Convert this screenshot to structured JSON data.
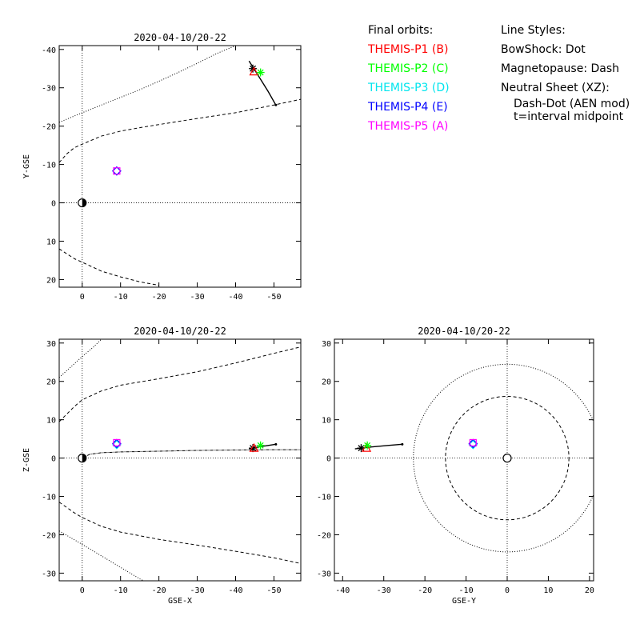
{
  "legend_orbits": {
    "title": "Final orbits:",
    "items": [
      {
        "label": "THEMIS-P1 (B)",
        "color": "#ff0000"
      },
      {
        "label": "THEMIS-P2 (C)",
        "color": "#00ff00"
      },
      {
        "label": "THEMIS-P3 (D)",
        "color": "#00e5ee"
      },
      {
        "label": "THEMIS-P4 (E)",
        "color": "#0000ff"
      },
      {
        "label": "THEMIS-P5 (A)",
        "color": "#ff00ff"
      }
    ]
  },
  "legend_styles": {
    "title": "Line Styles:",
    "bowshock": "BowShock: Dot",
    "magnetopause": "Magnetopause: Dash",
    "neutral_sheet": "Neutral Sheet (XZ):",
    "neutral_sheet_detail1": "Dash-Dot (AEN mod)",
    "neutral_sheet_detail2": "t=interval midpoint"
  },
  "chart_data": [
    {
      "type": "scatter",
      "title": "2020-04-10/20-22",
      "xlabel": "",
      "ylabel": "Y-GSE",
      "xlim": [
        6,
        -57
      ],
      "ylim": [
        22,
        -41
      ],
      "xticks": [
        0,
        -10,
        -20,
        -30,
        -40,
        -50
      ],
      "xtick_labels": [
        "0",
        "-10",
        "-20",
        "-30",
        "-40",
        "-50"
      ],
      "yticks": [
        20,
        10,
        0,
        -10,
        -20,
        -30,
        -40
      ],
      "ytick_labels": [
        "20",
        "10",
        "0",
        "-10",
        "-20",
        "-30",
        "-40"
      ],
      "probes": [
        {
          "name": "THEMIS-P1 (B)",
          "x": -44.8,
          "y": -34.2,
          "marker": "triangle",
          "color": "#ff0000"
        },
        {
          "name": "THEMIS-P2 (C)",
          "x": -46.5,
          "y": -34.0,
          "marker": "asterisk",
          "color": "#00ff00"
        },
        {
          "name": "THEMIS-P3 (D)",
          "x": -9.0,
          "y": -8.3,
          "marker": "diamond",
          "color": "#00e5ee"
        },
        {
          "name": "THEMIS-P4 (E)",
          "x": -9.0,
          "y": -8.3,
          "marker": "diamond",
          "color": "#0000ff"
        },
        {
          "name": "THEMIS-P5 (A)",
          "x": -9.0,
          "y": -8.3,
          "marker": "square",
          "color": "#ff00ff"
        }
      ],
      "orbit_track": [
        [
          -43.5,
          -37.0
        ],
        [
          -46.0,
          -33.0
        ],
        [
          -48.5,
          -29.0
        ],
        [
          -50.5,
          -25.5
        ]
      ],
      "track_end_marker": {
        "x": -44.5,
        "y": -35.0
      },
      "bowshock": [
        [
          6,
          -21.0
        ],
        [
          0,
          -23.5
        ],
        [
          -5,
          -25.5
        ],
        [
          -10,
          -27.5
        ],
        [
          -15,
          -29.5
        ],
        [
          -20,
          -31.7
        ],
        [
          -25,
          -34.0
        ],
        [
          -30,
          -36.4
        ],
        [
          -35,
          -38.9
        ],
        [
          -40,
          -41.0
        ]
      ],
      "magnetopause_top": [
        [
          6,
          -10.5
        ],
        [
          4,
          -12.8
        ],
        [
          2,
          -14.4
        ],
        [
          0,
          -15.3
        ],
        [
          -5,
          -17.4
        ],
        [
          -10,
          -18.7
        ],
        [
          -15,
          -19.6
        ],
        [
          -20,
          -20.4
        ],
        [
          -30,
          -22.0
        ],
        [
          -40,
          -23.5
        ],
        [
          -50,
          -25.5
        ],
        [
          -57,
          -27.0
        ]
      ],
      "magnetopause_bottom": [
        [
          6,
          12.0
        ],
        [
          2,
          14.6
        ],
        [
          0,
          15.5
        ],
        [
          -5,
          17.8
        ],
        [
          -10,
          19.3
        ],
        [
          -15,
          20.6
        ],
        [
          -20,
          21.5
        ]
      ],
      "earth": {
        "x": 0,
        "y": 0
      }
    },
    {
      "type": "scatter",
      "title": "2020-04-10/20-22",
      "xlabel": "GSE-X",
      "ylabel": "Z-GSE",
      "xlim": [
        6,
        -57
      ],
      "ylim": [
        -32,
        31
      ],
      "xticks": [
        0,
        -10,
        -20,
        -30,
        -40,
        -50
      ],
      "xtick_labels": [
        "0",
        "-10",
        "-20",
        "-30",
        "-40",
        "-50"
      ],
      "yticks": [
        -30,
        -20,
        -10,
        0,
        10,
        20,
        30
      ],
      "ytick_labels": [
        "-30",
        "-20",
        "-10",
        "0",
        "10",
        "20",
        "30"
      ],
      "probes": [
        {
          "name": "THEMIS-P1 (B)",
          "x": -44.8,
          "y": 2.6,
          "marker": "triangle",
          "color": "#ff0000"
        },
        {
          "name": "THEMIS-P2 (C)",
          "x": -46.5,
          "y": 3.3,
          "marker": "asterisk",
          "color": "#00ff00"
        },
        {
          "name": "THEMIS-P3 (D)",
          "x": -9.0,
          "y": 3.5,
          "marker": "diamond",
          "color": "#00e5ee"
        },
        {
          "name": "THEMIS-P4 (E)",
          "x": -9.0,
          "y": 3.8,
          "marker": "diamond",
          "color": "#0000ff"
        },
        {
          "name": "THEMIS-P5 (A)",
          "x": -9.0,
          "y": 4.0,
          "marker": "square",
          "color": "#ff00ff"
        }
      ],
      "orbit_track": [
        [
          -43.5,
          2.4
        ],
        [
          -46.0,
          2.9
        ],
        [
          -48.5,
          3.3
        ],
        [
          -50.5,
          3.6
        ]
      ],
      "track_end_marker": {
        "x": -44.5,
        "y": 2.6
      },
      "neutral_sheet": [
        [
          0,
          0
        ],
        [
          -2,
          1.0
        ],
        [
          -5,
          1.4
        ],
        [
          -10,
          1.6
        ],
        [
          -20,
          1.8
        ],
        [
          -30,
          2.0
        ],
        [
          -40,
          2.1
        ],
        [
          -50,
          2.2
        ],
        [
          -57,
          2.2
        ]
      ],
      "bowshock_top": [
        [
          6,
          21.0
        ],
        [
          0,
          26.5
        ],
        [
          -3,
          29.0
        ],
        [
          -5,
          31.0
        ]
      ],
      "bowshock_bottom": [
        [
          6,
          -19.0
        ],
        [
          0,
          -22.5
        ],
        [
          -5,
          -25.5
        ],
        [
          -10,
          -28.5
        ],
        [
          -15,
          -31.5
        ],
        [
          -16,
          -32.0
        ]
      ],
      "magnetopause_top": [
        [
          6,
          9.5
        ],
        [
          2,
          13.5
        ],
        [
          0,
          15.2
        ],
        [
          -5,
          17.5
        ],
        [
          -10,
          19.0
        ],
        [
          -20,
          20.7
        ],
        [
          -30,
          22.5
        ],
        [
          -40,
          24.8
        ],
        [
          -50,
          27.3
        ],
        [
          -57,
          29.0
        ]
      ],
      "magnetopause_bottom": [
        [
          6,
          -11.5
        ],
        [
          2,
          -14.3
        ],
        [
          0,
          -15.5
        ],
        [
          -5,
          -17.8
        ],
        [
          -10,
          -19.3
        ],
        [
          -20,
          -21.2
        ],
        [
          -30,
          -22.7
        ],
        [
          -40,
          -24.3
        ],
        [
          -50,
          -26.0
        ],
        [
          -57,
          -27.5
        ]
      ],
      "earth": {
        "x": 0,
        "y": 0
      }
    },
    {
      "type": "scatter",
      "title": "2020-04-10/20-22",
      "xlabel": "GSE-Y",
      "ylabel": "",
      "xlim": [
        -42,
        21
      ],
      "ylim": [
        -32,
        31
      ],
      "xticks": [
        -40,
        -30,
        -20,
        -10,
        0,
        10,
        20
      ],
      "xtick_labels": [
        "-40",
        "-30",
        "-20",
        "-10",
        "0",
        "10",
        "20"
      ],
      "yticks": [
        -30,
        -20,
        -10,
        0,
        10,
        20,
        30
      ],
      "ytick_labels": [
        "-30",
        "-20",
        "-10",
        "0",
        "10",
        "20",
        "30"
      ],
      "probes": [
        {
          "name": "THEMIS-P1 (B)",
          "x": -34.2,
          "y": 2.6,
          "marker": "triangle",
          "color": "#ff0000"
        },
        {
          "name": "THEMIS-P2 (C)",
          "x": -34.0,
          "y": 3.3,
          "marker": "asterisk",
          "color": "#00ff00"
        },
        {
          "name": "THEMIS-P3 (D)",
          "x": -8.3,
          "y": 3.5,
          "marker": "diamond",
          "color": "#00e5ee"
        },
        {
          "name": "THEMIS-P4 (E)",
          "x": -8.3,
          "y": 3.8,
          "marker": "diamond",
          "color": "#0000ff"
        },
        {
          "name": "THEMIS-P5 (A)",
          "x": -8.3,
          "y": 4.0,
          "marker": "square",
          "color": "#ff00ff"
        }
      ],
      "orbit_track": [
        [
          -37.0,
          2.4
        ],
        [
          -33.0,
          2.9
        ],
        [
          -29.0,
          3.3
        ],
        [
          -25.5,
          3.6
        ]
      ],
      "track_end_marker": {
        "x": -35.5,
        "y": 2.6
      },
      "bowshock_radius": 22.8,
      "magnetopause_radius": 15.0,
      "earth": {
        "x": 0,
        "y": 0
      }
    }
  ]
}
